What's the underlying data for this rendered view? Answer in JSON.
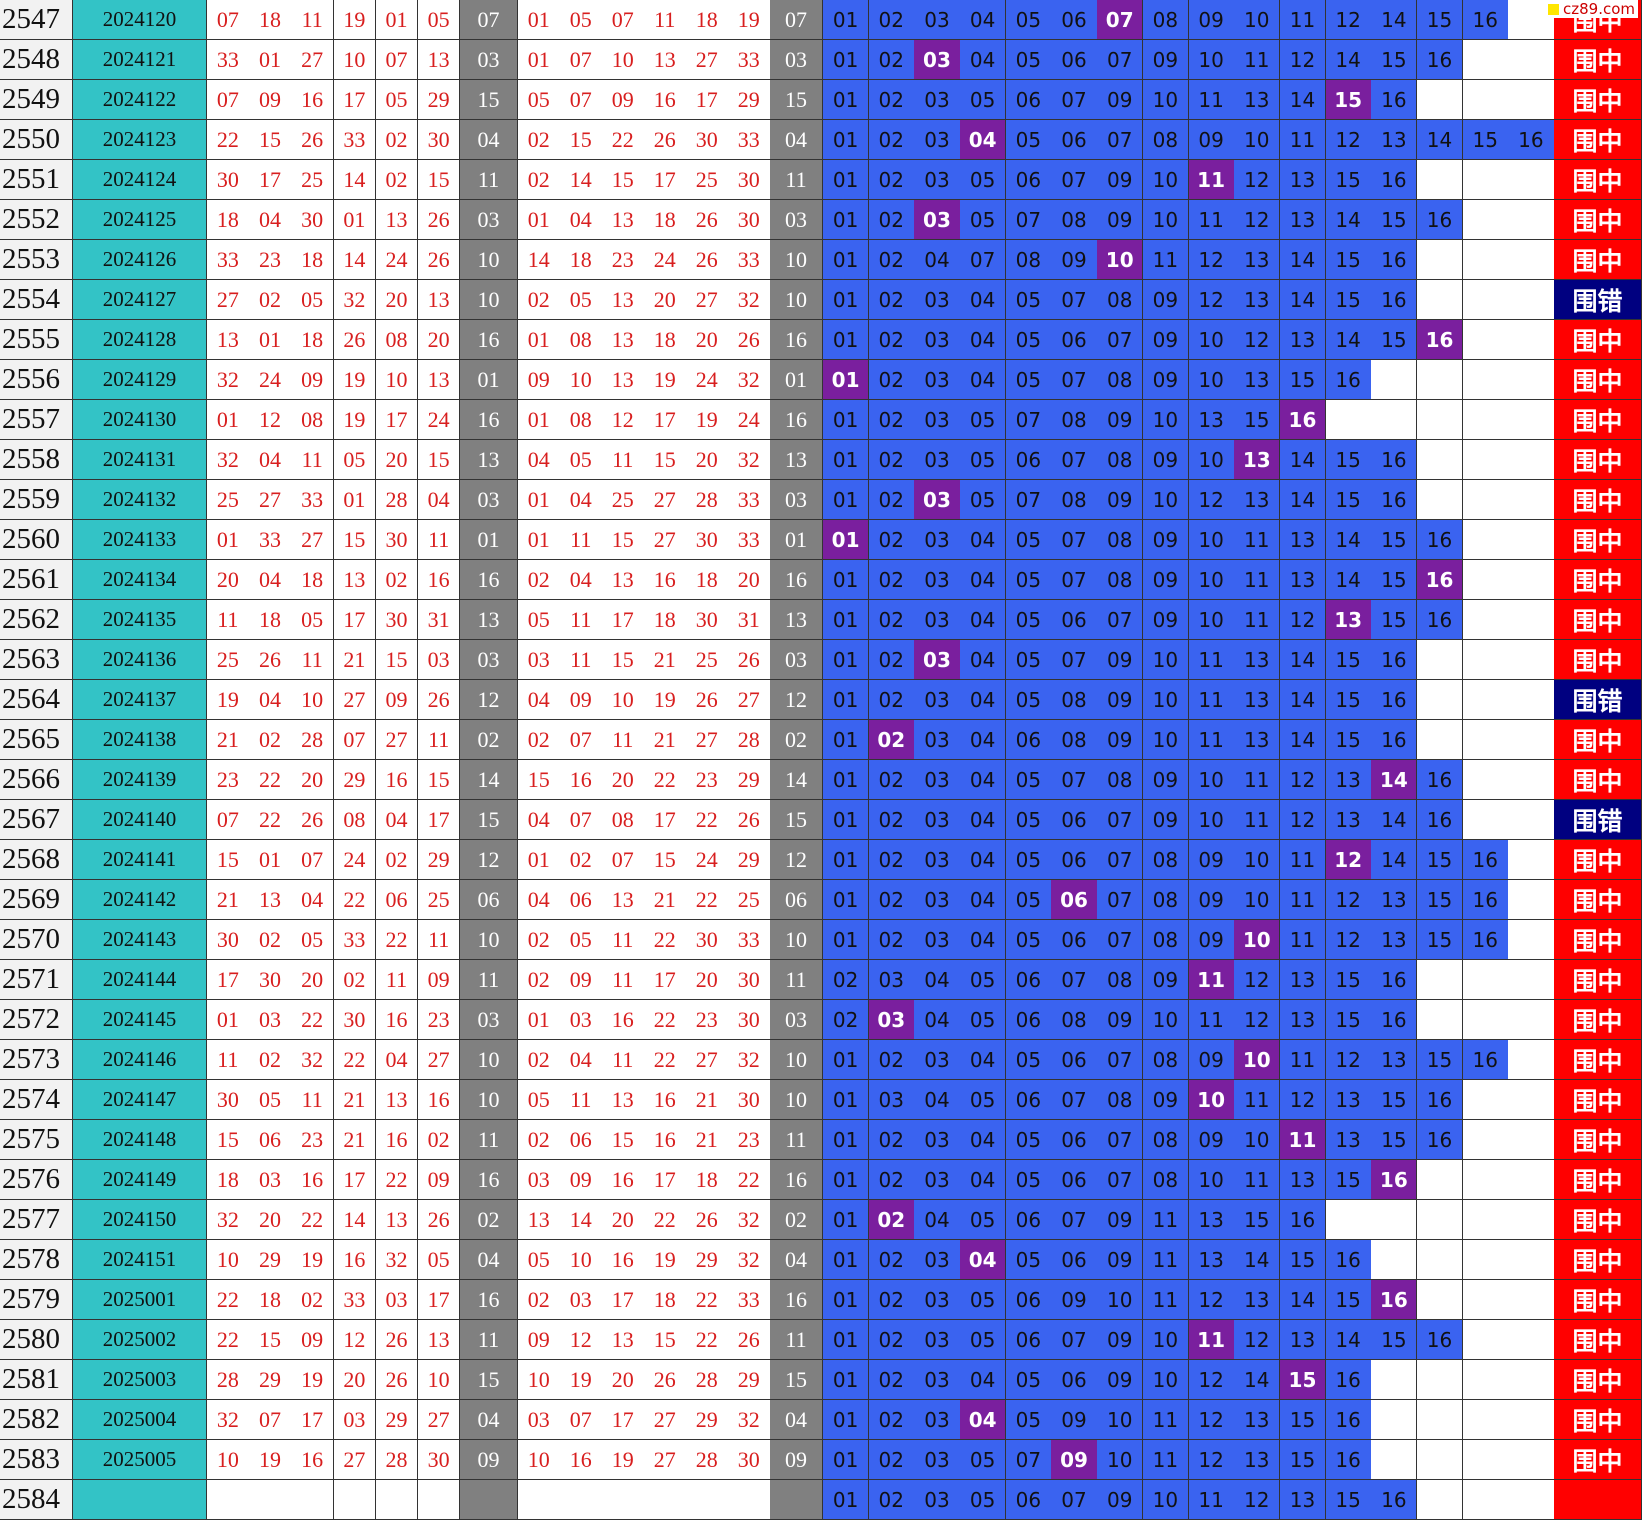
{
  "watermark": "cz89.com",
  "rows": [
    {
      "n": "2547",
      "issue": "2024120",
      "draw": [
        "07",
        "18",
        "11",
        "19",
        "01",
        "05"
      ],
      "special": "07",
      "sorted": [
        "01",
        "05",
        "07",
        "11",
        "18",
        "19"
      ],
      "pool": [
        "01",
        "02",
        "03",
        "04",
        "05",
        "06",
        "07",
        "08",
        "09",
        "10",
        "11",
        "12",
        "14",
        "15",
        "16"
      ],
      "result": "围中"
    },
    {
      "n": "2548",
      "issue": "2024121",
      "draw": [
        "33",
        "01",
        "27",
        "10",
        "07",
        "13"
      ],
      "special": "03",
      "sorted": [
        "01",
        "07",
        "10",
        "13",
        "27",
        "33"
      ],
      "pool": [
        "01",
        "02",
        "03",
        "04",
        "05",
        "06",
        "07",
        "09",
        "10",
        "11",
        "12",
        "14",
        "15",
        "16"
      ],
      "result": "围中"
    },
    {
      "n": "2549",
      "issue": "2024122",
      "draw": [
        "07",
        "09",
        "16",
        "17",
        "05",
        "29"
      ],
      "special": "15",
      "sorted": [
        "05",
        "07",
        "09",
        "16",
        "17",
        "29"
      ],
      "pool": [
        "01",
        "02",
        "03",
        "05",
        "06",
        "07",
        "09",
        "10",
        "11",
        "13",
        "14",
        "15",
        "16"
      ],
      "result": "围中"
    },
    {
      "n": "2550",
      "issue": "2024123",
      "draw": [
        "22",
        "15",
        "26",
        "33",
        "02",
        "30"
      ],
      "special": "04",
      "sorted": [
        "02",
        "15",
        "22",
        "26",
        "30",
        "33"
      ],
      "pool": [
        "01",
        "02",
        "03",
        "04",
        "05",
        "06",
        "07",
        "08",
        "09",
        "10",
        "11",
        "12",
        "13",
        "14",
        "15",
        "16"
      ],
      "result": "围中"
    },
    {
      "n": "2551",
      "issue": "2024124",
      "draw": [
        "30",
        "17",
        "25",
        "14",
        "02",
        "15"
      ],
      "special": "11",
      "sorted": [
        "02",
        "14",
        "15",
        "17",
        "25",
        "30"
      ],
      "pool": [
        "01",
        "02",
        "03",
        "05",
        "06",
        "07",
        "09",
        "10",
        "11",
        "12",
        "13",
        "15",
        "16"
      ],
      "result": "围中"
    },
    {
      "n": "2552",
      "issue": "2024125",
      "draw": [
        "18",
        "04",
        "30",
        "01",
        "13",
        "26"
      ],
      "special": "03",
      "sorted": [
        "01",
        "04",
        "13",
        "18",
        "26",
        "30"
      ],
      "pool": [
        "01",
        "02",
        "03",
        "05",
        "07",
        "08",
        "09",
        "10",
        "11",
        "12",
        "13",
        "14",
        "15",
        "16"
      ],
      "result": "围中"
    },
    {
      "n": "2553",
      "issue": "2024126",
      "draw": [
        "33",
        "23",
        "18",
        "14",
        "24",
        "26"
      ],
      "special": "10",
      "sorted": [
        "14",
        "18",
        "23",
        "24",
        "26",
        "33"
      ],
      "pool": [
        "01",
        "02",
        "04",
        "07",
        "08",
        "09",
        "10",
        "11",
        "12",
        "13",
        "14",
        "15",
        "16"
      ],
      "result": "围中"
    },
    {
      "n": "2554",
      "issue": "2024127",
      "draw": [
        "27",
        "02",
        "05",
        "32",
        "20",
        "13"
      ],
      "special": "10",
      "sorted": [
        "02",
        "05",
        "13",
        "20",
        "27",
        "32"
      ],
      "pool": [
        "01",
        "02",
        "03",
        "04",
        "05",
        "07",
        "08",
        "09",
        "12",
        "13",
        "14",
        "15",
        "16"
      ],
      "result": "围错"
    },
    {
      "n": "2555",
      "issue": "2024128",
      "draw": [
        "13",
        "01",
        "18",
        "26",
        "08",
        "20"
      ],
      "special": "16",
      "sorted": [
        "01",
        "08",
        "13",
        "18",
        "20",
        "26"
      ],
      "pool": [
        "01",
        "02",
        "03",
        "04",
        "05",
        "06",
        "07",
        "09",
        "10",
        "12",
        "13",
        "14",
        "15",
        "16"
      ],
      "result": "围中"
    },
    {
      "n": "2556",
      "issue": "2024129",
      "draw": [
        "32",
        "24",
        "09",
        "19",
        "10",
        "13"
      ],
      "special": "01",
      "sorted": [
        "09",
        "10",
        "13",
        "19",
        "24",
        "32"
      ],
      "pool": [
        "01",
        "02",
        "03",
        "04",
        "05",
        "07",
        "08",
        "09",
        "10",
        "13",
        "15",
        "16"
      ],
      "result": "围中"
    },
    {
      "n": "2557",
      "issue": "2024130",
      "draw": [
        "01",
        "12",
        "08",
        "19",
        "17",
        "24"
      ],
      "special": "16",
      "sorted": [
        "01",
        "08",
        "12",
        "17",
        "19",
        "24"
      ],
      "pool": [
        "01",
        "02",
        "03",
        "05",
        "07",
        "08",
        "09",
        "10",
        "13",
        "15",
        "16"
      ],
      "result": "围中"
    },
    {
      "n": "2558",
      "issue": "2024131",
      "draw": [
        "32",
        "04",
        "11",
        "05",
        "20",
        "15"
      ],
      "special": "13",
      "sorted": [
        "04",
        "05",
        "11",
        "15",
        "20",
        "32"
      ],
      "pool": [
        "01",
        "02",
        "03",
        "05",
        "06",
        "07",
        "08",
        "09",
        "10",
        "13",
        "14",
        "15",
        "16"
      ],
      "result": "围中"
    },
    {
      "n": "2559",
      "issue": "2024132",
      "draw": [
        "25",
        "27",
        "33",
        "01",
        "28",
        "04"
      ],
      "special": "03",
      "sorted": [
        "01",
        "04",
        "25",
        "27",
        "28",
        "33"
      ],
      "pool": [
        "01",
        "02",
        "03",
        "05",
        "07",
        "08",
        "09",
        "10",
        "12",
        "13",
        "14",
        "15",
        "16"
      ],
      "result": "围中"
    },
    {
      "n": "2560",
      "issue": "2024133",
      "draw": [
        "01",
        "33",
        "27",
        "15",
        "30",
        "11"
      ],
      "special": "01",
      "sorted": [
        "01",
        "11",
        "15",
        "27",
        "30",
        "33"
      ],
      "pool": [
        "01",
        "02",
        "03",
        "04",
        "05",
        "07",
        "08",
        "09",
        "10",
        "11",
        "13",
        "14",
        "15",
        "16"
      ],
      "result": "围中"
    },
    {
      "n": "2561",
      "issue": "2024134",
      "draw": [
        "20",
        "04",
        "18",
        "13",
        "02",
        "16"
      ],
      "special": "16",
      "sorted": [
        "02",
        "04",
        "13",
        "16",
        "18",
        "20"
      ],
      "pool": [
        "01",
        "02",
        "03",
        "04",
        "05",
        "07",
        "08",
        "09",
        "10",
        "11",
        "13",
        "14",
        "15",
        "16"
      ],
      "result": "围中"
    },
    {
      "n": "2562",
      "issue": "2024135",
      "draw": [
        "11",
        "18",
        "05",
        "17",
        "30",
        "31"
      ],
      "special": "13",
      "sorted": [
        "05",
        "11",
        "17",
        "18",
        "30",
        "31"
      ],
      "pool": [
        "01",
        "02",
        "03",
        "04",
        "05",
        "06",
        "07",
        "09",
        "10",
        "11",
        "12",
        "13",
        "15",
        "16"
      ],
      "result": "围中"
    },
    {
      "n": "2563",
      "issue": "2024136",
      "draw": [
        "25",
        "26",
        "11",
        "21",
        "15",
        "03"
      ],
      "special": "03",
      "sorted": [
        "03",
        "11",
        "15",
        "21",
        "25",
        "26"
      ],
      "pool": [
        "01",
        "02",
        "03",
        "04",
        "05",
        "07",
        "09",
        "10",
        "11",
        "13",
        "14",
        "15",
        "16"
      ],
      "result": "围中"
    },
    {
      "n": "2564",
      "issue": "2024137",
      "draw": [
        "19",
        "04",
        "10",
        "27",
        "09",
        "26"
      ],
      "special": "12",
      "sorted": [
        "04",
        "09",
        "10",
        "19",
        "26",
        "27"
      ],
      "pool": [
        "01",
        "02",
        "03",
        "04",
        "05",
        "08",
        "09",
        "10",
        "11",
        "13",
        "14",
        "15",
        "16"
      ],
      "result": "围错"
    },
    {
      "n": "2565",
      "issue": "2024138",
      "draw": [
        "21",
        "02",
        "28",
        "07",
        "27",
        "11"
      ],
      "special": "02",
      "sorted": [
        "02",
        "07",
        "11",
        "21",
        "27",
        "28"
      ],
      "pool": [
        "01",
        "02",
        "03",
        "04",
        "06",
        "08",
        "09",
        "10",
        "11",
        "13",
        "14",
        "15",
        "16"
      ],
      "result": "围中"
    },
    {
      "n": "2566",
      "issue": "2024139",
      "draw": [
        "23",
        "22",
        "20",
        "29",
        "16",
        "15"
      ],
      "special": "14",
      "sorted": [
        "15",
        "16",
        "20",
        "22",
        "23",
        "29"
      ],
      "pool": [
        "01",
        "02",
        "03",
        "04",
        "05",
        "07",
        "08",
        "09",
        "10",
        "11",
        "12",
        "13",
        "14",
        "16"
      ],
      "result": "围中"
    },
    {
      "n": "2567",
      "issue": "2024140",
      "draw": [
        "07",
        "22",
        "26",
        "08",
        "04",
        "17"
      ],
      "special": "15",
      "sorted": [
        "04",
        "07",
        "08",
        "17",
        "22",
        "26"
      ],
      "pool": [
        "01",
        "02",
        "03",
        "04",
        "05",
        "06",
        "07",
        "09",
        "10",
        "11",
        "12",
        "13",
        "14",
        "16"
      ],
      "result": "围错"
    },
    {
      "n": "2568",
      "issue": "2024141",
      "draw": [
        "15",
        "01",
        "07",
        "24",
        "02",
        "29"
      ],
      "special": "12",
      "sorted": [
        "01",
        "02",
        "07",
        "15",
        "24",
        "29"
      ],
      "pool": [
        "01",
        "02",
        "03",
        "04",
        "05",
        "06",
        "07",
        "08",
        "09",
        "10",
        "11",
        "12",
        "14",
        "15",
        "16"
      ],
      "result": "围中"
    },
    {
      "n": "2569",
      "issue": "2024142",
      "draw": [
        "21",
        "13",
        "04",
        "22",
        "06",
        "25"
      ],
      "special": "06",
      "sorted": [
        "04",
        "06",
        "13",
        "21",
        "22",
        "25"
      ],
      "pool": [
        "01",
        "02",
        "03",
        "04",
        "05",
        "06",
        "07",
        "08",
        "09",
        "10",
        "11",
        "12",
        "13",
        "15",
        "16"
      ],
      "result": "围中"
    },
    {
      "n": "2570",
      "issue": "2024143",
      "draw": [
        "30",
        "02",
        "05",
        "33",
        "22",
        "11"
      ],
      "special": "10",
      "sorted": [
        "02",
        "05",
        "11",
        "22",
        "30",
        "33"
      ],
      "pool": [
        "01",
        "02",
        "03",
        "04",
        "05",
        "06",
        "07",
        "08",
        "09",
        "10",
        "11",
        "12",
        "13",
        "15",
        "16"
      ],
      "result": "围中"
    },
    {
      "n": "2571",
      "issue": "2024144",
      "draw": [
        "17",
        "30",
        "20",
        "02",
        "11",
        "09"
      ],
      "special": "11",
      "sorted": [
        "02",
        "09",
        "11",
        "17",
        "20",
        "30"
      ],
      "pool": [
        "02",
        "03",
        "04",
        "05",
        "06",
        "07",
        "08",
        "09",
        "11",
        "12",
        "13",
        "15",
        "16"
      ],
      "result": "围中"
    },
    {
      "n": "2572",
      "issue": "2024145",
      "draw": [
        "01",
        "03",
        "22",
        "30",
        "16",
        "23"
      ],
      "special": "03",
      "sorted": [
        "01",
        "03",
        "16",
        "22",
        "23",
        "30"
      ],
      "pool": [
        "02",
        "03",
        "04",
        "05",
        "06",
        "08",
        "09",
        "10",
        "11",
        "12",
        "13",
        "15",
        "16"
      ],
      "result": "围中"
    },
    {
      "n": "2573",
      "issue": "2024146",
      "draw": [
        "11",
        "02",
        "32",
        "22",
        "04",
        "27"
      ],
      "special": "10",
      "sorted": [
        "02",
        "04",
        "11",
        "22",
        "27",
        "32"
      ],
      "pool": [
        "01",
        "02",
        "03",
        "04",
        "05",
        "06",
        "07",
        "08",
        "09",
        "10",
        "11",
        "12",
        "13",
        "15",
        "16"
      ],
      "result": "围中"
    },
    {
      "n": "2574",
      "issue": "2024147",
      "draw": [
        "30",
        "05",
        "11",
        "21",
        "13",
        "16"
      ],
      "special": "10",
      "sorted": [
        "05",
        "11",
        "13",
        "16",
        "21",
        "30"
      ],
      "pool": [
        "01",
        "03",
        "04",
        "05",
        "06",
        "07",
        "08",
        "09",
        "10",
        "11",
        "12",
        "13",
        "15",
        "16"
      ],
      "result": "围中"
    },
    {
      "n": "2575",
      "issue": "2024148",
      "draw": [
        "15",
        "06",
        "23",
        "21",
        "16",
        "02"
      ],
      "special": "11",
      "sorted": [
        "02",
        "06",
        "15",
        "16",
        "21",
        "23"
      ],
      "pool": [
        "01",
        "02",
        "03",
        "04",
        "05",
        "06",
        "07",
        "08",
        "09",
        "10",
        "11",
        "13",
        "15",
        "16"
      ],
      "result": "围中"
    },
    {
      "n": "2576",
      "issue": "2024149",
      "draw": [
        "18",
        "03",
        "16",
        "17",
        "22",
        "09"
      ],
      "special": "16",
      "sorted": [
        "03",
        "09",
        "16",
        "17",
        "18",
        "22"
      ],
      "pool": [
        "01",
        "02",
        "03",
        "04",
        "05",
        "06",
        "07",
        "08",
        "10",
        "11",
        "13",
        "15",
        "16"
      ],
      "result": "围中"
    },
    {
      "n": "2577",
      "issue": "2024150",
      "draw": [
        "32",
        "20",
        "22",
        "14",
        "13",
        "26"
      ],
      "special": "02",
      "sorted": [
        "13",
        "14",
        "20",
        "22",
        "26",
        "32"
      ],
      "pool": [
        "01",
        "02",
        "04",
        "05",
        "06",
        "07",
        "09",
        "11",
        "13",
        "15",
        "16"
      ],
      "result": "围中"
    },
    {
      "n": "2578",
      "issue": "2024151",
      "draw": [
        "10",
        "29",
        "19",
        "16",
        "32",
        "05"
      ],
      "special": "04",
      "sorted": [
        "05",
        "10",
        "16",
        "19",
        "29",
        "32"
      ],
      "pool": [
        "01",
        "02",
        "03",
        "04",
        "05",
        "06",
        "09",
        "11",
        "13",
        "14",
        "15",
        "16"
      ],
      "result": "围中"
    },
    {
      "n": "2579",
      "issue": "2025001",
      "draw": [
        "22",
        "18",
        "02",
        "33",
        "03",
        "17"
      ],
      "special": "16",
      "sorted": [
        "02",
        "03",
        "17",
        "18",
        "22",
        "33"
      ],
      "pool": [
        "01",
        "02",
        "03",
        "05",
        "06",
        "09",
        "10",
        "11",
        "12",
        "13",
        "14",
        "15",
        "16"
      ],
      "result": "围中"
    },
    {
      "n": "2580",
      "issue": "2025002",
      "draw": [
        "22",
        "15",
        "09",
        "12",
        "26",
        "13"
      ],
      "special": "11",
      "sorted": [
        "09",
        "12",
        "13",
        "15",
        "22",
        "26"
      ],
      "pool": [
        "01",
        "02",
        "03",
        "05",
        "06",
        "07",
        "09",
        "10",
        "11",
        "12",
        "13",
        "14",
        "15",
        "16"
      ],
      "result": "围中"
    },
    {
      "n": "2581",
      "issue": "2025003",
      "draw": [
        "28",
        "29",
        "19",
        "20",
        "26",
        "10"
      ],
      "special": "15",
      "sorted": [
        "10",
        "19",
        "20",
        "26",
        "28",
        "29"
      ],
      "pool": [
        "01",
        "02",
        "03",
        "04",
        "05",
        "06",
        "09",
        "10",
        "12",
        "14",
        "15",
        "16"
      ],
      "result": "围中"
    },
    {
      "n": "2582",
      "issue": "2025004",
      "draw": [
        "32",
        "07",
        "17",
        "03",
        "29",
        "27"
      ],
      "special": "04",
      "sorted": [
        "03",
        "07",
        "17",
        "27",
        "29",
        "32"
      ],
      "pool": [
        "01",
        "02",
        "03",
        "04",
        "05",
        "09",
        "10",
        "11",
        "12",
        "13",
        "15",
        "16"
      ],
      "result": "围中"
    },
    {
      "n": "2583",
      "issue": "2025005",
      "draw": [
        "10",
        "19",
        "16",
        "27",
        "28",
        "30"
      ],
      "special": "09",
      "sorted": [
        "10",
        "16",
        "19",
        "27",
        "28",
        "30"
      ],
      "pool": [
        "01",
        "02",
        "03",
        "05",
        "07",
        "09",
        "10",
        "11",
        "12",
        "13",
        "15",
        "16"
      ],
      "result": "围中"
    },
    {
      "n": "2584",
      "pool": [
        "01",
        "02",
        "03",
        "05",
        "06",
        "07",
        "09",
        "10",
        "11",
        "12",
        "13",
        "15",
        "16"
      ]
    }
  ]
}
